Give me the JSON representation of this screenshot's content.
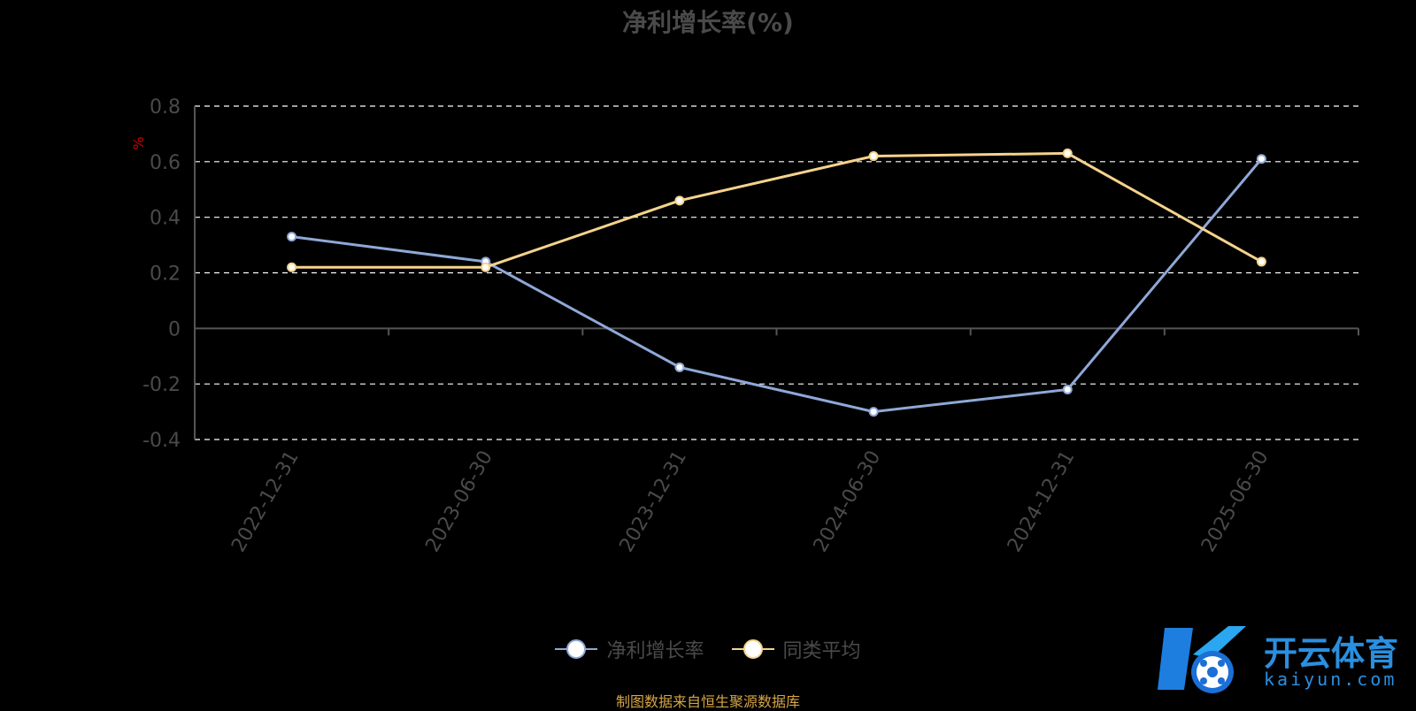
{
  "chart_data": {
    "type": "line",
    "title": "净利增长率(%)",
    "ylabel": "%",
    "xlabel": "",
    "categories": [
      "2022-12-31",
      "2023-06-30",
      "2023-12-31",
      "2024-06-30",
      "2024-12-31",
      "2025-06-30"
    ],
    "ylim": [
      -0.4,
      0.8
    ],
    "yticks": [
      "0.8",
      "0.6",
      "0.4",
      "0.2",
      "0",
      "-0.2",
      "-0.4"
    ],
    "grid": true,
    "legend_position": "bottom",
    "series": [
      {
        "name": "净利增长率",
        "values": [
          0.33,
          0.24,
          -0.14,
          -0.3,
          -0.22,
          0.61
        ],
        "color": "#8fa8d8"
      },
      {
        "name": "同类平均",
        "values": [
          0.22,
          0.22,
          0.46,
          0.62,
          0.63,
          0.24
        ],
        "color": "#f5d38c"
      }
    ]
  },
  "source_note": "制图数据来自恒生聚源数据库",
  "logo": {
    "cn": "开云体育",
    "en": "kaiyun.com"
  },
  "colors": {
    "background": "#000000",
    "axis": "#555555",
    "grid": "#ffffff",
    "ylabel": "#cc0000"
  }
}
